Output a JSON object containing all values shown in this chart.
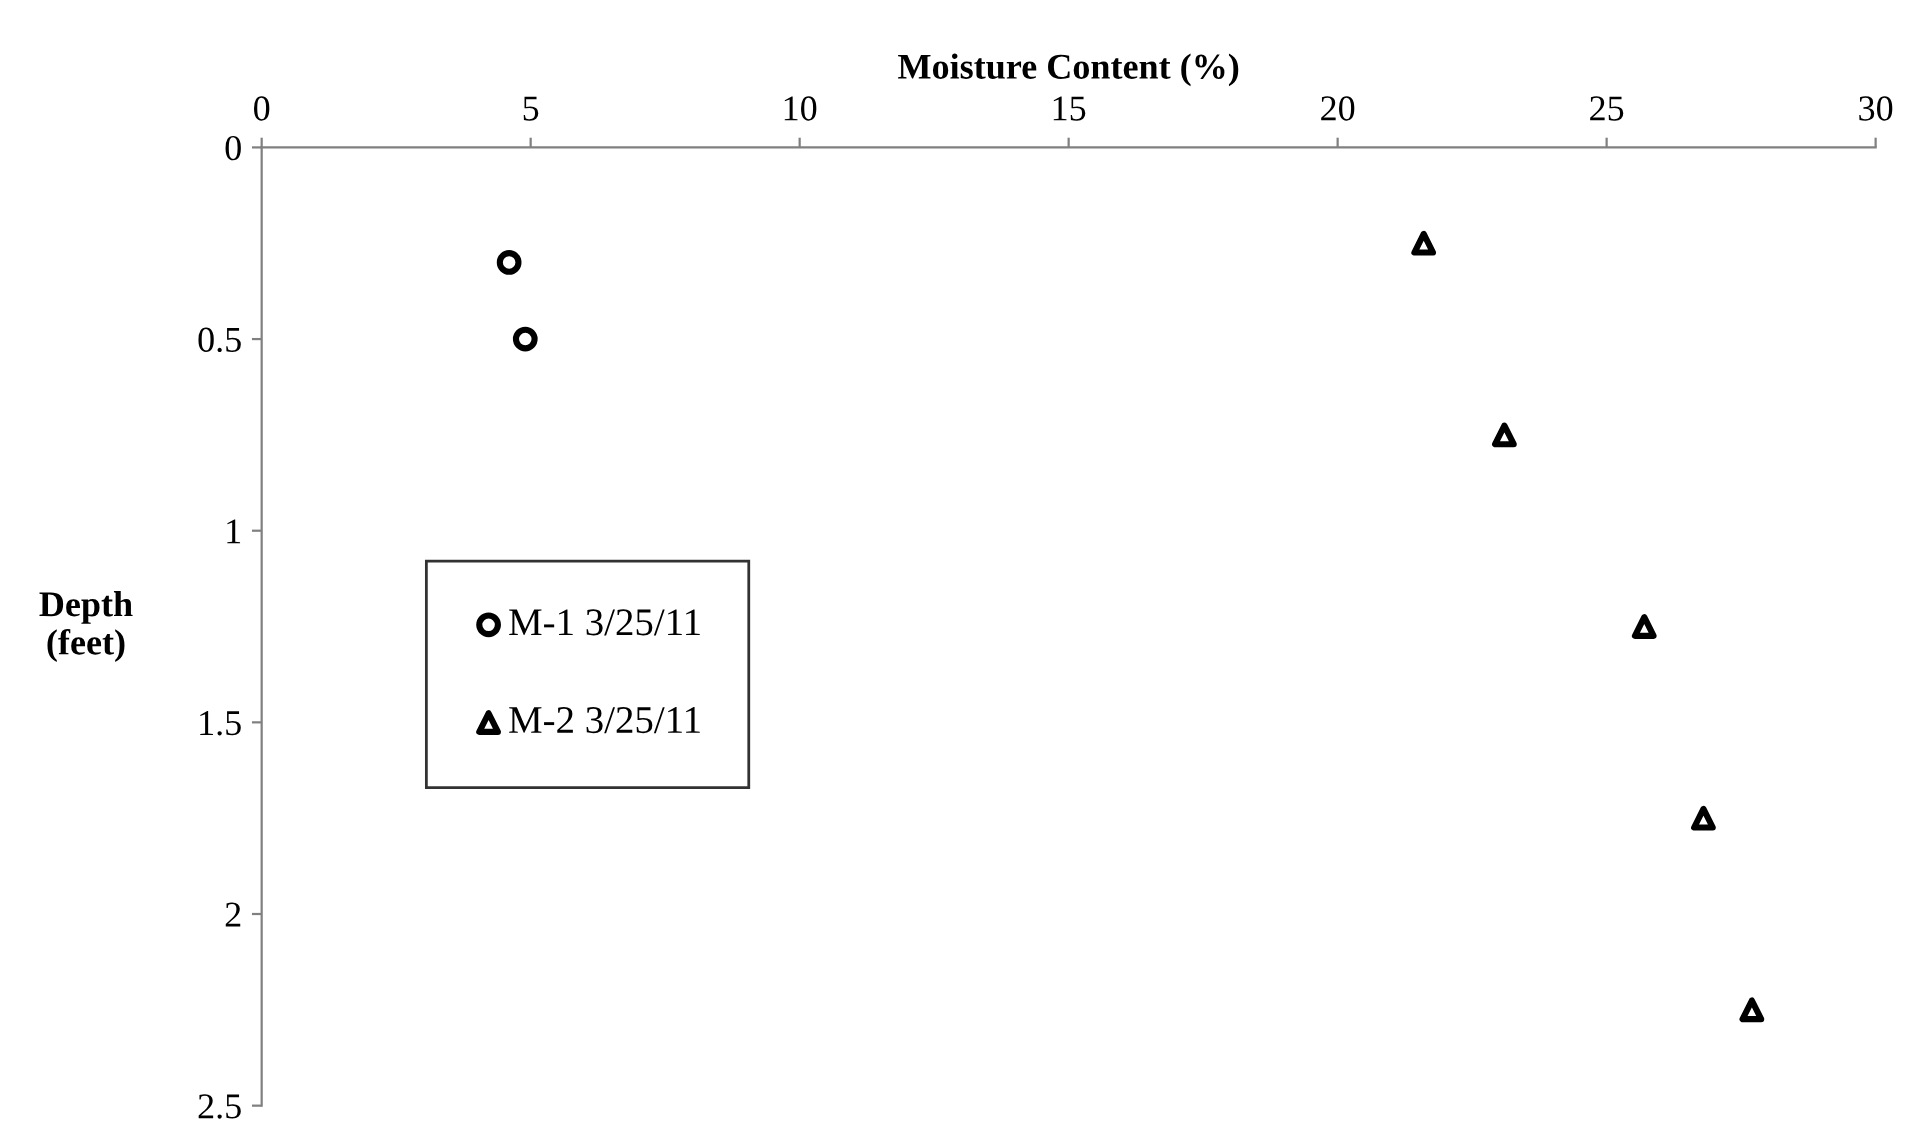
{
  "chart_data": {
    "type": "scatter",
    "xlabel": "Moisture Content (%)",
    "ylabel": "Depth\n(feet)",
    "xlim": [
      0,
      30
    ],
    "xticks": [
      0,
      5,
      10,
      15,
      20,
      25,
      30
    ],
    "ylim": [
      2.5,
      0
    ],
    "yticks": [
      0,
      0.5,
      1,
      1.5,
      2,
      2.5
    ],
    "grid": false,
    "legend": "center left",
    "series": [
      {
        "name": "M-1 3/25/11",
        "color": "#000000",
        "marker": "circle",
        "x": [
          4.6,
          4.9
        ],
        "values": [
          0.3,
          0.5
        ]
      },
      {
        "name": "M-2 3/25/11",
        "color": "#000000",
        "marker": "triangle",
        "x": [
          21.6,
          23.1,
          25.7,
          26.8,
          27.7
        ],
        "values": [
          0.25,
          0.75,
          1.25,
          1.75,
          2.25
        ]
      }
    ]
  }
}
